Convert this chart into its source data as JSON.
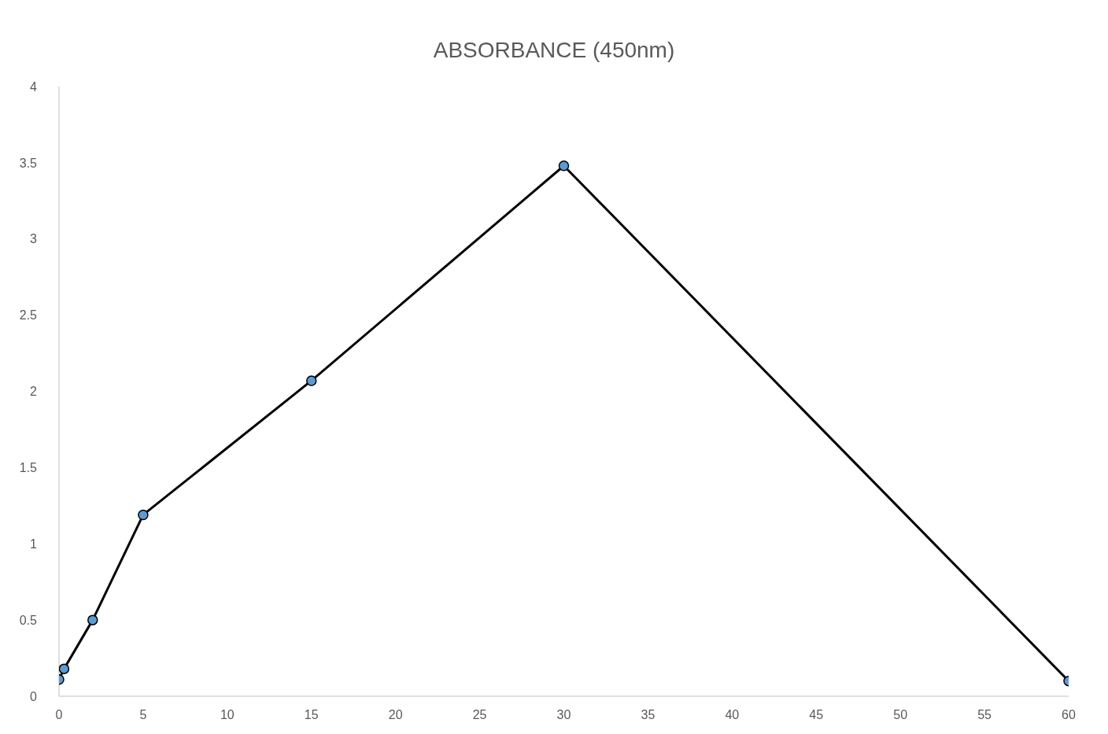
{
  "chart_data": {
    "type": "line",
    "title": "ABSORBANCE (450nm)",
    "x": [
      0,
      0.3,
      2,
      5,
      15,
      30,
      60
    ],
    "series": [
      {
        "color": "#000000",
        "values": [
          0.11,
          0.18,
          0.5,
          1.19,
          2.07,
          3.48,
          0.1
        ]
      }
    ],
    "xlim": [
      0,
      60
    ],
    "xticks": [
      0,
      5,
      10,
      15,
      20,
      25,
      30,
      35,
      40,
      45,
      50,
      55,
      60
    ],
    "ylim": [
      0,
      4
    ],
    "yticks": [
      0,
      0.5,
      1,
      1.5,
      2,
      2.5,
      3,
      3.5,
      4
    ],
    "grid": false,
    "legend": false,
    "marker": "circle",
    "line_style": "solid"
  }
}
